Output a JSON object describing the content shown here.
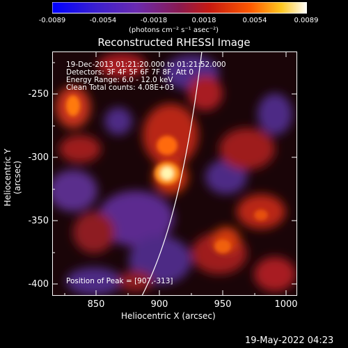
{
  "colorbar": {
    "tick_labels": [
      "-0.0089",
      "-0.0054",
      "-0.0018",
      "0.0018",
      "0.0054",
      "0.0089"
    ],
    "unit": "(photons cm⁻² s⁻¹ asec⁻²)"
  },
  "plot": {
    "title": "Reconstructed RHESSI Image",
    "xlabel": "Heliocentric X (arcsec)",
    "ylabel": "Heliocentric Y (arcsec)",
    "xticks": [
      "850",
      "900",
      "950",
      "1000"
    ],
    "yticks": [
      "-250",
      "-300",
      "-350",
      "-400"
    ]
  },
  "info": {
    "line1": "19-Dec-2013 01:21:20.000 to 01:21:52.000",
    "line2": "Detectors: 3F 4F 5F 6F 7F 8F, Att 0",
    "line3": "Energy Range: 6.0 - 12.0 keV",
    "line4": "Clean    Total counts: 4.08E+03",
    "peak": "Position of Peak = [907,-313]"
  },
  "footer": {
    "timestamp": "19-May-2022 04:23"
  },
  "colors": {
    "background": "#000000",
    "limb": "#ffffff"
  }
}
